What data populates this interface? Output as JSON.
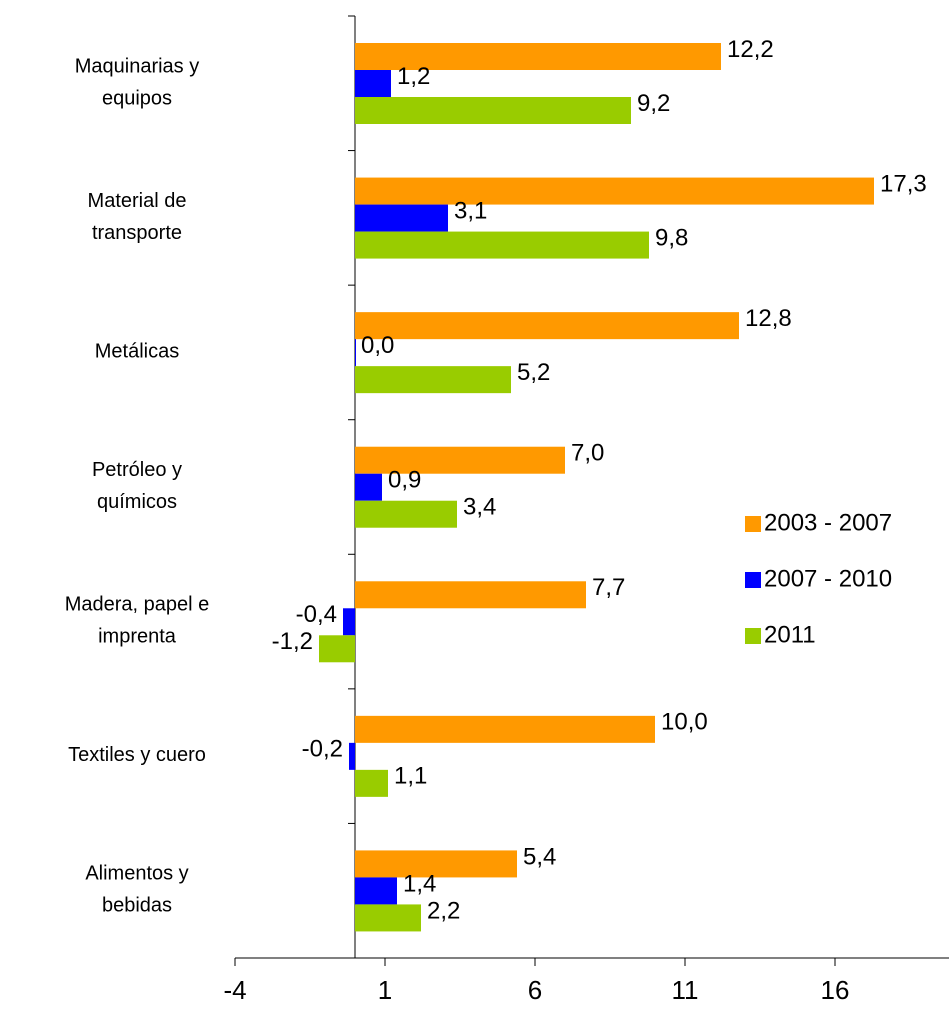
{
  "chart_data": {
    "type": "hbar",
    "categories": [
      "Maquinarias y\nequipos",
      "Material de\ntransporte",
      "Metálicas",
      "Petróleo y\nquímicos",
      "Madera, papel e\nimprenta",
      "Textiles y cuero",
      "Alimentos y\nbebidas"
    ],
    "series": [
      {
        "name": "2003 - 2007",
        "color": "#ff9900",
        "values": [
          12.2,
          17.3,
          12.8,
          7.0,
          7.7,
          10.0,
          5.4
        ],
        "value_labels": [
          "12,2",
          "17,3",
          "12,8",
          "7,0",
          "7,7",
          "10,0",
          "5,4"
        ]
      },
      {
        "name": "2007 - 2010",
        "color": "#0000ff",
        "values": [
          1.2,
          3.1,
          0.0,
          0.9,
          -0.4,
          -0.2,
          1.4
        ],
        "value_labels": [
          "1,2",
          "3,1",
          "0,0",
          "0,9",
          "-0,4",
          "-0,2",
          "1,4"
        ]
      },
      {
        "name": "2011",
        "color": "#99cc00",
        "values": [
          9.2,
          9.8,
          5.2,
          3.4,
          -1.2,
          1.1,
          2.2
        ],
        "value_labels": [
          "9,2",
          "9,8",
          "5,2",
          "3,4",
          "-1,2",
          "1,1",
          "2,2"
        ]
      }
    ],
    "xlim": [
      -4,
      19.8
    ],
    "xticks": [
      -4,
      1,
      6,
      11,
      16
    ],
    "legend": "right"
  }
}
